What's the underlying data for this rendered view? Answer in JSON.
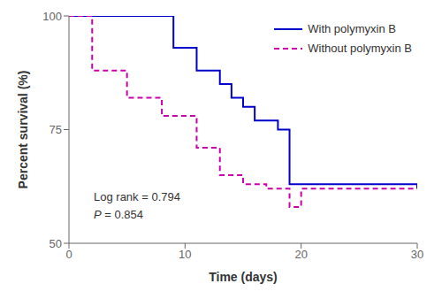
{
  "chart_data": {
    "type": "step",
    "xlabel": "Time (days)",
    "ylabel": "Percent survival (%)",
    "xlim": [
      0,
      30
    ],
    "ylim": [
      50,
      100
    ],
    "xticks": [
      0,
      10,
      20,
      30
    ],
    "yticks": [
      50,
      75,
      100
    ],
    "grid": false,
    "legend": "upper right",
    "series": [
      {
        "name": "With polymyxin B",
        "color": "#0000CC",
        "line_style": "solid",
        "x": [
          0,
          7,
          9,
          11,
          13,
          14,
          15,
          16,
          18,
          19,
          30
        ],
        "values": [
          100,
          100,
          93,
          88,
          85,
          82,
          80,
          77,
          75,
          63,
          62
        ]
      },
      {
        "name": "Without polymyxin B",
        "color": "#CC00AA",
        "line_style": "dashed",
        "x": [
          0,
          2,
          5,
          8,
          11,
          13,
          15,
          17,
          19,
          20,
          30
        ],
        "values": [
          100,
          88,
          82,
          78,
          71,
          65,
          63,
          62,
          58,
          62,
          62
        ]
      }
    ],
    "annotations": [
      "Log rank = 0.794",
      "P = 0.854"
    ]
  }
}
